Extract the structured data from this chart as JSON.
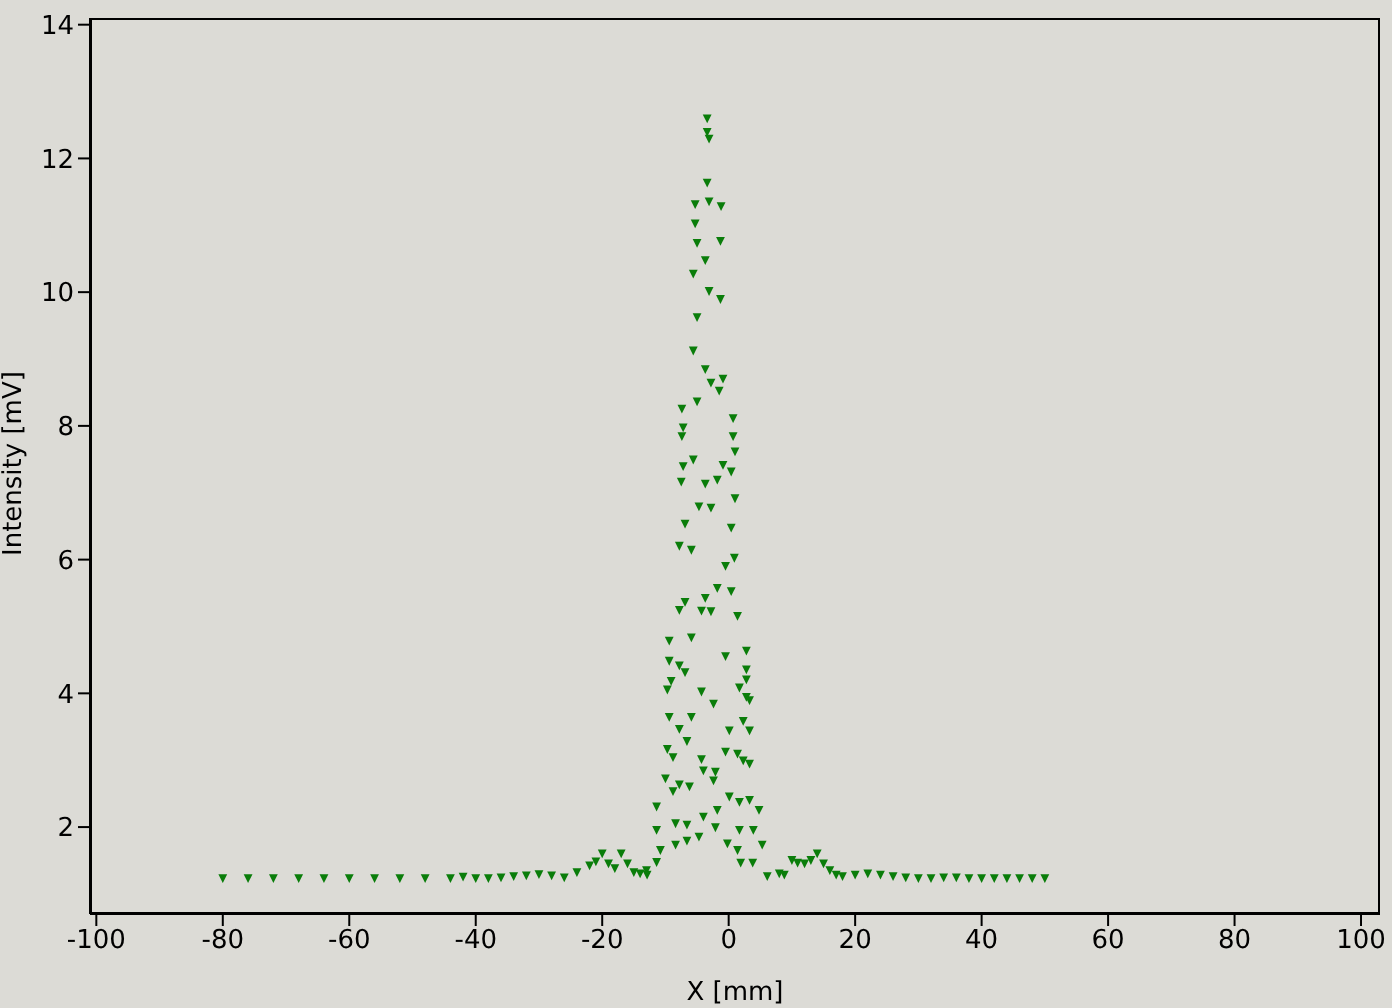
{
  "chart_data": {
    "type": "scatter",
    "xlabel": "X [mm]",
    "ylabel": "Intensity [mV]",
    "xlim": [
      -101,
      103
    ],
    "ylim": [
      0.7,
      14.1
    ],
    "xticks": [
      -100,
      -80,
      -60,
      -40,
      -20,
      0,
      20,
      40,
      60,
      80,
      100
    ],
    "yticks": [
      2,
      4,
      6,
      8,
      10,
      12,
      14
    ],
    "grid": false,
    "legend": false,
    "marker": "triangle",
    "series": [
      {
        "color": "#0a7d0a",
        "x": [
          -80,
          -76,
          -72,
          -68,
          -64,
          -60,
          -56,
          -52,
          -48,
          -44,
          -42,
          -40,
          -38,
          -36,
          -34,
          -32,
          -30,
          -28,
          -26,
          -24,
          -22,
          -21,
          -20,
          -19,
          -18,
          -17,
          -16,
          -15,
          -14,
          -13,
          -12.9,
          -11.4,
          -11.4,
          -11.4,
          -10.8,
          -10,
          -9.7,
          -9.7,
          -9.4,
          -9.4,
          -9.4,
          -9.1,
          -8.8,
          -8.8,
          -8.4,
          -8.4,
          -7.8,
          -7.8,
          -7.8,
          -7.8,
          -7.8,
          -7.5,
          -7.4,
          -7.4,
          -7.2,
          -7.2,
          -6.9,
          -6.9,
          -6.9,
          -6.6,
          -6.6,
          -6.6,
          -6.2,
          -5.9,
          -5.9,
          -5.9,
          -5.6,
          -5.6,
          -5.6,
          -5.3,
          -5.3,
          -5,
          -5,
          -5,
          -4.7,
          -4.7,
          -4.3,
          -4.3,
          -4.3,
          -4,
          -4,
          -3.7,
          -3.7,
          -3.7,
          -3.7,
          -3.4,
          -3.4,
          -3.4,
          -3.1,
          -3.1,
          -3.1,
          -2.8,
          -2.8,
          -2.8,
          -2.4,
          -2.4,
          -2.1,
          -2.1,
          -1.8,
          -1.8,
          -1.8,
          -1.5,
          -1.3,
          -1.3,
          -1.2,
          -0.9,
          -0.9,
          -0.5,
          -0.5,
          -0.5,
          -0.2,
          0.1,
          0.1,
          0.4,
          0.4,
          0.4,
          0.7,
          0.7,
          0.9,
          1,
          1,
          1.4,
          1.4,
          1.4,
          1.7,
          1.7,
          1.7,
          1.9,
          2.3,
          2.3,
          2.8,
          2.8,
          2.8,
          2.8,
          3.3,
          3.3,
          3.3,
          3.3,
          3.8,
          3.9,
          4.8,
          5.3,
          6.1,
          8,
          8.8,
          10,
          10.9,
          12,
          13,
          14,
          15,
          16,
          17,
          18,
          20,
          22,
          24,
          26,
          28,
          30,
          32,
          34,
          36,
          38,
          40,
          42,
          44,
          46,
          48,
          50
        ],
        "values": [
          1.23,
          1.23,
          1.23,
          1.23,
          1.23,
          1.23,
          1.23,
          1.23,
          1.23,
          1.23,
          1.25,
          1.23,
          1.23,
          1.24,
          1.26,
          1.27,
          1.29,
          1.27,
          1.24,
          1.32,
          1.42,
          1.48,
          1.6,
          1.45,
          1.38,
          1.6,
          1.45,
          1.32,
          1.3,
          1.35,
          1.28,
          2.3,
          1.95,
          1.47,
          1.65,
          2.72,
          4.05,
          3.16,
          4.78,
          4.48,
          3.64,
          4.18,
          3.04,
          2.53,
          2.05,
          1.73,
          6.2,
          5.24,
          4.41,
          3.46,
          2.63,
          7.16,
          8.25,
          7.84,
          7.97,
          7.39,
          6.53,
          5.36,
          4.31,
          3.28,
          2.03,
          1.79,
          2.6,
          6.14,
          4.83,
          3.64,
          10.27,
          9.12,
          7.49,
          11.31,
          11.02,
          10.73,
          9.62,
          8.36,
          6.79,
          1.85,
          5.23,
          4.02,
          3.01,
          2.84,
          2.15,
          10.47,
          8.84,
          7.13,
          5.42,
          12.59,
          12.39,
          11.63,
          12.29,
          11.35,
          10.01,
          8.64,
          6.77,
          5.22,
          3.84,
          2.69,
          2.82,
          1.99,
          7.19,
          5.57,
          2.25,
          8.52,
          10.76,
          9.89,
          11.28,
          8.7,
          7.41,
          5.9,
          4.55,
          3.12,
          1.75,
          3.44,
          2.45,
          7.31,
          6.47,
          5.52,
          8.11,
          7.84,
          6.02,
          7.61,
          6.91,
          5.15,
          3.09,
          1.65,
          4.08,
          2.37,
          1.95,
          1.46,
          3.58,
          2.99,
          4.63,
          4.35,
          4.2,
          3.94,
          3.89,
          3.44,
          2.94,
          2.4,
          1.46,
          1.95,
          2.25,
          1.73,
          1.26,
          1.3,
          1.28,
          1.5,
          1.46,
          1.45,
          1.5,
          1.6,
          1.45,
          1.35,
          1.28,
          1.26,
          1.28,
          1.3,
          1.28,
          1.26,
          1.24,
          1.23,
          1.23,
          1.24,
          1.24,
          1.23,
          1.23,
          1.23,
          1.23,
          1.23,
          1.23,
          1.23
        ]
      }
    ]
  }
}
